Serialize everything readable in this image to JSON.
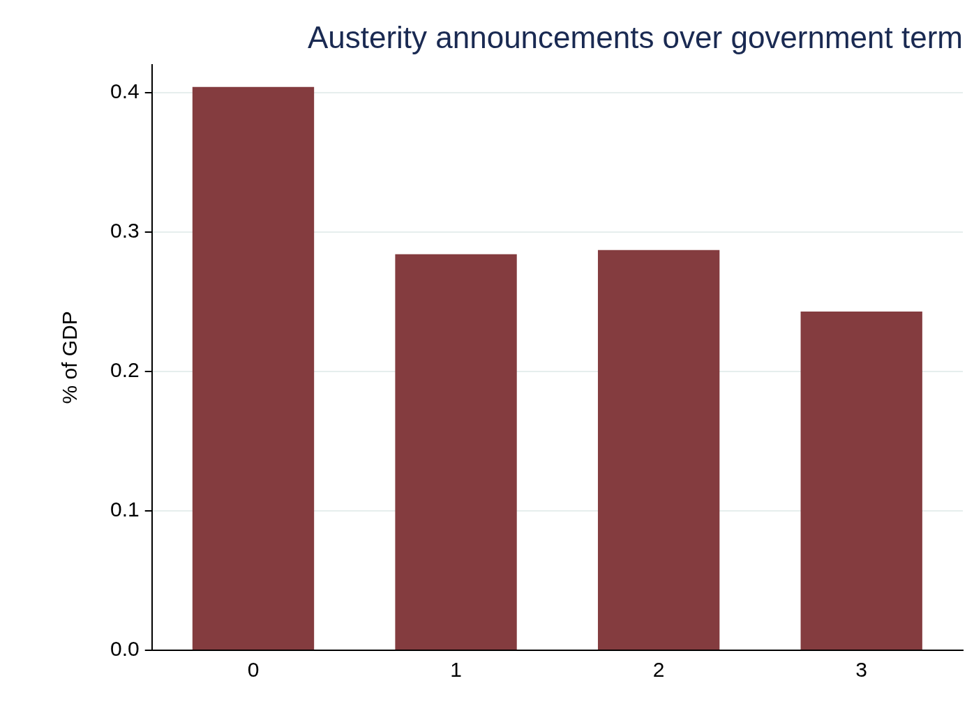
{
  "chart_data": {
    "type": "bar",
    "title": "Austerity announcements over government term",
    "ylabel": "% of GDP",
    "categories": [
      "0",
      "1",
      "2",
      "3"
    ],
    "values": [
      0.404,
      0.284,
      0.287,
      0.243
    ],
    "color": "#843c3f",
    "ylim": [
      0,
      0.42
    ],
    "yticks": [
      {
        "value": 0,
        "label": "0.0"
      },
      {
        "value": 0.1,
        "label": "0.1"
      },
      {
        "value": 0.2,
        "label": "0.2"
      },
      {
        "value": 0.3,
        "label": "0.3"
      },
      {
        "value": 0.4,
        "label": "0.4"
      }
    ],
    "grid": "y",
    "legend": false
  }
}
